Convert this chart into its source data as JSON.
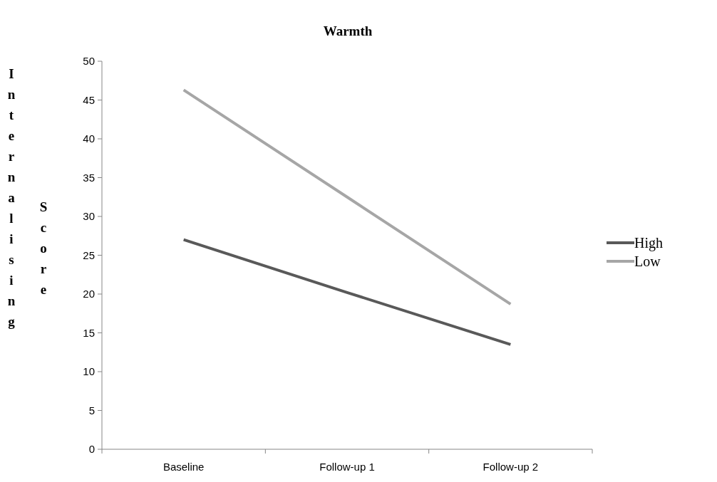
{
  "chart_data": {
    "type": "line",
    "title": "Warmth",
    "ylabel": "Internalising Score",
    "categories": [
      "Baseline",
      "Follow-up 1",
      "Follow-up 2"
    ],
    "series": [
      {
        "name": "High",
        "color": "#595959",
        "values": [
          27,
          20.2,
          13.5
        ]
      },
      {
        "name": "Low",
        "color": "#a6a6a6",
        "values": [
          46.3,
          32.5,
          18.7
        ]
      }
    ],
    "ylim": [
      0,
      50
    ],
    "yticks": [
      0,
      5,
      10,
      15,
      20,
      25,
      30,
      35,
      40,
      45,
      50
    ],
    "grid": false,
    "legend": "right",
    "marker": "none",
    "line_style": "solid"
  }
}
